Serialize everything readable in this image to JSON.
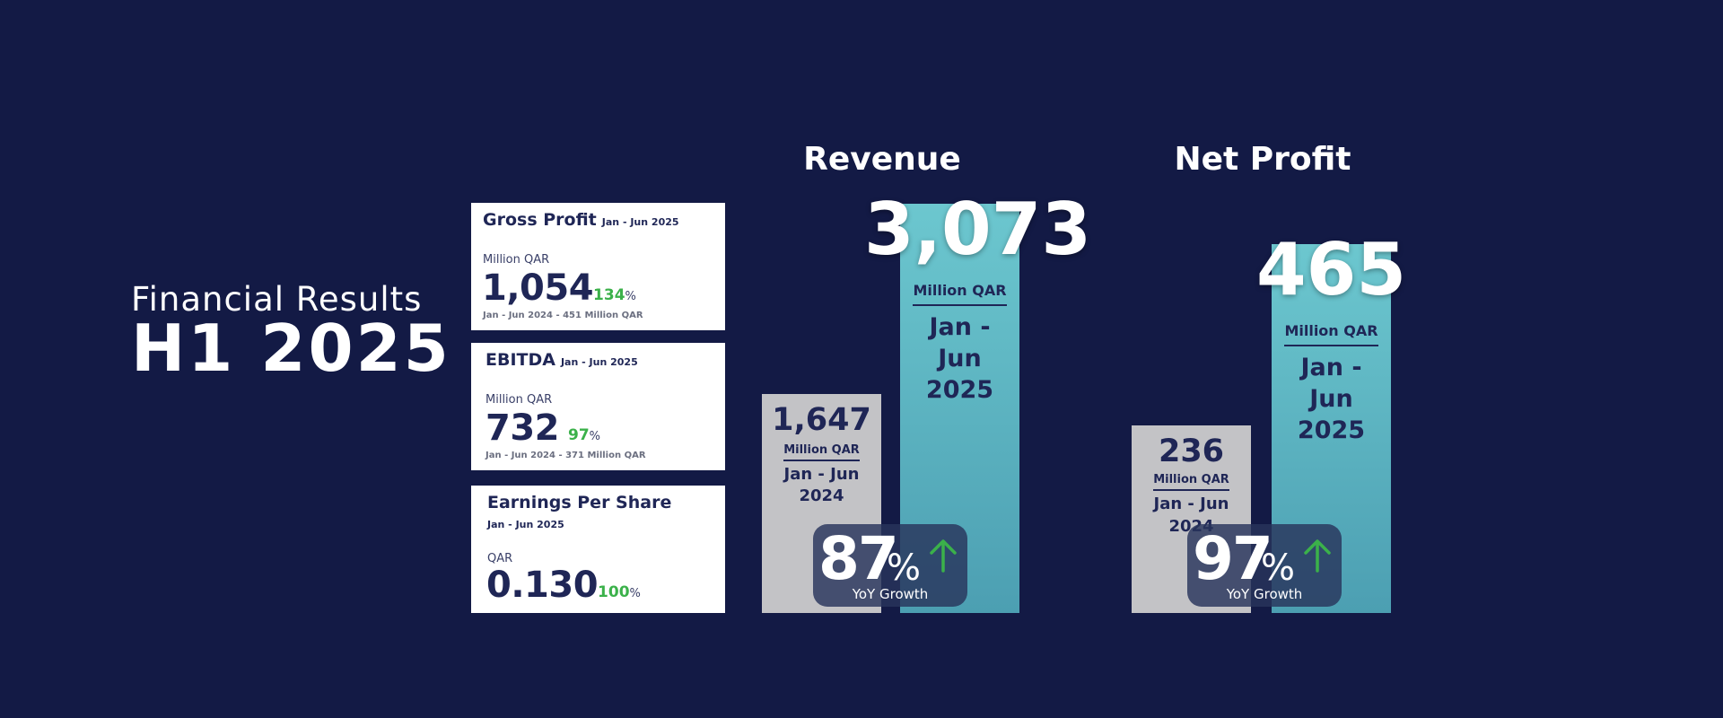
{
  "title": {
    "line1": "Financial Results",
    "line2": "H1 2025"
  },
  "cards": [
    {
      "title": "Gross Profit",
      "period": "Jan - Jun 2025",
      "unit": "Million QAR",
      "value": "1,054",
      "growth": "134",
      "pct": "%",
      "compare": "Jan - Jun 2024 - 451 Million QAR"
    },
    {
      "title": "EBITDA",
      "period": "Jan - Jun 2025",
      "unit": "Million QAR",
      "value": "732",
      "growth": "97",
      "pct": "%",
      "compare": "Jan - Jun 2024 - 371 Million QAR"
    },
    {
      "title": "Earnings Per Share",
      "period": "Jan - Jun 2025",
      "unit": "QAR",
      "value": "0.130",
      "growth": "100",
      "pct": "%"
    }
  ],
  "colors": {
    "background": "#131a45",
    "card_text": "#1f2656",
    "growth_green": "#3bb14a",
    "bar_prev": "#c3c3c6",
    "bar_cur": "#5fb6c3",
    "arrow": "#3bb14a"
  },
  "icons": {
    "growth_arrow": "arrow-up-icon"
  },
  "chart_data": [
    {
      "type": "bar",
      "title": "Revenue",
      "categories": [
        "Jan - Jun 2024",
        "Jan - Jun 2025"
      ],
      "values": [
        1647,
        3073
      ],
      "value_labels": [
        "1,647",
        "3,073"
      ],
      "unit": "Million QAR",
      "period_prev": [
        "Jan - Jun",
        "2024"
      ],
      "period_cur": [
        "Jan - Jun",
        "2025"
      ],
      "growth": {
        "value": "87",
        "pct": "%",
        "label": "YoY Growth"
      }
    },
    {
      "type": "bar",
      "title": "Net Profit",
      "categories": [
        "Jan - Jun 2024",
        "Jan - Jun 2025"
      ],
      "values": [
        236,
        465
      ],
      "value_labels": [
        "236",
        "465"
      ],
      "unit": "Million QAR",
      "period_prev": [
        "Jan - Jun",
        "2024"
      ],
      "period_cur": [
        "Jan - Jun",
        "2025"
      ],
      "growth": {
        "value": "97",
        "pct": "%",
        "label": "YoY Growth"
      }
    }
  ]
}
